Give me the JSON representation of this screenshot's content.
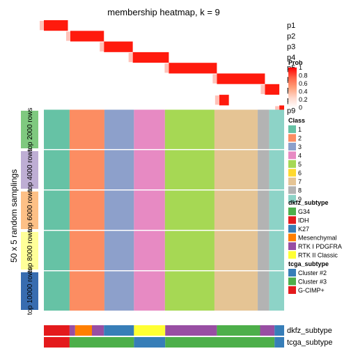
{
  "chart_data": {
    "type": "heatmap",
    "title": "membership heatmap, k = 9",
    "side_label": "50 x 5 random samplings",
    "prob_rows": [
      "p1",
      "p2",
      "p3",
      "p4",
      "p5",
      "p6",
      "p7",
      "p8",
      "p9"
    ],
    "prob_row_peaks": [
      {
        "row": "p1",
        "from": 0.0,
        "to": 0.1
      },
      {
        "row": "p2",
        "from": 0.11,
        "to": 0.25
      },
      {
        "row": "p3",
        "from": 0.25,
        "to": 0.37
      },
      {
        "row": "p4",
        "from": 0.37,
        "to": 0.52
      },
      {
        "row": "p5",
        "from": 0.52,
        "to": 0.72
      },
      {
        "row": "p6",
        "from": 0.72,
        "to": 0.92
      },
      {
        "row": "p7",
        "from": 0.92,
        "to": 0.98
      },
      {
        "row": "p8",
        "from": 0.73,
        "to": 0.77
      },
      {
        "row": "p9",
        "from": 0.98,
        "to": 1.0
      }
    ],
    "row_groups": [
      "top 2000 rows",
      "top 4000 rows",
      "top 6000 rows",
      "top 8000 rows",
      "top 10000 rows"
    ],
    "row_group_colors": [
      "#7fc97f",
      "#beaed4",
      "#fdc086",
      "#ffff99",
      "#386cb0"
    ],
    "class_columns": [
      {
        "class": "1",
        "width": 0.107
      },
      {
        "class": "2",
        "width": 0.145
      },
      {
        "class": "3",
        "width": 0.123
      },
      {
        "class": "4",
        "width": 0.129
      },
      {
        "class": "5",
        "width": 0.206
      },
      {
        "class": "7",
        "width": 0.18
      },
      {
        "class": "8",
        "width": 0.048
      },
      {
        "class": "9",
        "width": 0.062
      }
    ],
    "prob_legend": {
      "title": "Prob",
      "ticks": [
        "1",
        "0.8",
        "0.6",
        "0.4",
        "0.2",
        "0"
      ],
      "colors": [
        "#ff0000",
        "#ff6347",
        "#ffa07a",
        "#ffd8cc",
        "#ffffff"
      ]
    },
    "class_legend": {
      "title": "Class",
      "items": [
        {
          "label": "1",
          "color": "#66c2a5"
        },
        {
          "label": "2",
          "color": "#fc8d62"
        },
        {
          "label": "3",
          "color": "#8da0cb"
        },
        {
          "label": "4",
          "color": "#e78ac3"
        },
        {
          "label": "5",
          "color": "#a6d854"
        },
        {
          "label": "6",
          "color": "#ffd92f"
        },
        {
          "label": "7",
          "color": "#e5c494"
        },
        {
          "label": "8",
          "color": "#b3b3b3"
        },
        {
          "label": "9",
          "color": "#8dd3c7"
        }
      ]
    },
    "dkfz_legend": {
      "title": "dkfz_subtype",
      "items": [
        {
          "label": "G34",
          "color": "#4daf4a"
        },
        {
          "label": "IDH",
          "color": "#e41a1c"
        },
        {
          "label": "K27",
          "color": "#377eb8"
        },
        {
          "label": "Mesenchymal",
          "color": "#ff7f00"
        },
        {
          "label": "RTK I PDGFRA",
          "color": "#984ea3"
        },
        {
          "label": "RTK II Classic",
          "color": "#ffff33"
        }
      ]
    },
    "tcga_legend": {
      "title": "tcga_subtype",
      "items": [
        {
          "label": "Cluster #2",
          "color": "#377eb8"
        },
        {
          "label": "Cluster #3",
          "color": "#4daf4a"
        },
        {
          "label": "G-CIMP+",
          "color": "#e41a1c"
        }
      ]
    },
    "annotation_rows": [
      "dkfz_subtype",
      "tcga_subtype"
    ],
    "dkfz_segments": [
      {
        "label": "IDH",
        "from": 0.0,
        "to": 0.107
      },
      {
        "label": "RTK I PDGFRA",
        "from": 0.107,
        "to": 0.13
      },
      {
        "label": "Mesenchymal",
        "from": 0.13,
        "to": 0.2
      },
      {
        "label": "RTK I PDGFRA",
        "from": 0.2,
        "to": 0.25
      },
      {
        "label": "K27",
        "from": 0.25,
        "to": 0.375
      },
      {
        "label": "RTK II Classic",
        "from": 0.375,
        "to": 0.505
      },
      {
        "label": "RTK I PDGFRA",
        "from": 0.505,
        "to": 0.72
      },
      {
        "label": "G34",
        "from": 0.72,
        "to": 0.9
      },
      {
        "label": "RTK I PDGFRA",
        "from": 0.9,
        "to": 0.96
      },
      {
        "label": "K27",
        "from": 0.96,
        "to": 1.0
      }
    ],
    "tcga_segments": [
      {
        "label": "G-CIMP+",
        "from": 0.0,
        "to": 0.107
      },
      {
        "label": "Cluster #3",
        "from": 0.107,
        "to": 0.375
      },
      {
        "label": "Cluster #2",
        "from": 0.375,
        "to": 0.505
      },
      {
        "label": "Cluster #3",
        "from": 0.505,
        "to": 0.96
      },
      {
        "label": "Cluster #2",
        "from": 0.96,
        "to": 1.0
      }
    ]
  }
}
